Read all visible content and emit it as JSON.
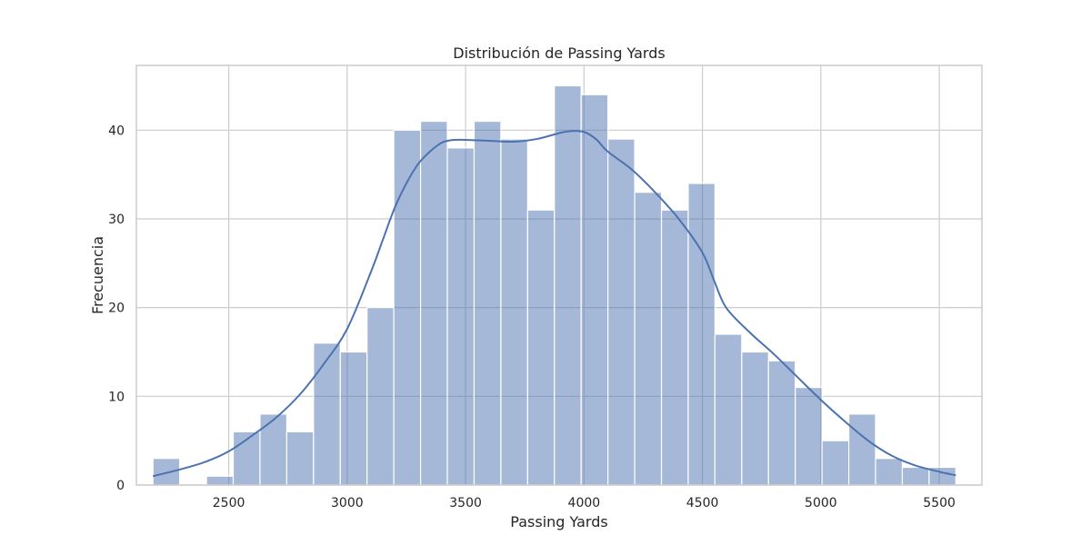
{
  "chart_data": {
    "type": "bar",
    "title": "Distribución de Passing Yards",
    "xlabel": "Passing Yards",
    "ylabel": "Frecuencia",
    "xlim": [
      2110,
      5680
    ],
    "ylim": [
      0,
      47.3
    ],
    "xticks": [
      2500,
      3000,
      3500,
      4000,
      4500,
      5000,
      5500
    ],
    "yticks": [
      0,
      10,
      20,
      30,
      40
    ],
    "grid": true,
    "bar_color": "#4c72b0",
    "bar_opacity": 0.5,
    "kde_color": "#4c72b0",
    "bin_start": 2180,
    "bin_width": 113,
    "bins": [
      {
        "x0": 2180,
        "x1": 2293,
        "count": 3
      },
      {
        "x0": 2293,
        "x1": 2406,
        "count": 0
      },
      {
        "x0": 2406,
        "x1": 2519,
        "count": 1
      },
      {
        "x0": 2519,
        "x1": 2632,
        "count": 6
      },
      {
        "x0": 2632,
        "x1": 2745,
        "count": 8
      },
      {
        "x0": 2745,
        "x1": 2858,
        "count": 6
      },
      {
        "x0": 2858,
        "x1": 2971,
        "count": 16
      },
      {
        "x0": 2971,
        "x1": 3084,
        "count": 15
      },
      {
        "x0": 3084,
        "x1": 3197,
        "count": 20
      },
      {
        "x0": 3197,
        "x1": 3310,
        "count": 40
      },
      {
        "x0": 3310,
        "x1": 3423,
        "count": 41
      },
      {
        "x0": 3423,
        "x1": 3536,
        "count": 38
      },
      {
        "x0": 3536,
        "x1": 3649,
        "count": 41
      },
      {
        "x0": 3649,
        "x1": 3762,
        "count": 39
      },
      {
        "x0": 3762,
        "x1": 3875,
        "count": 31
      },
      {
        "x0": 3875,
        "x1": 3988,
        "count": 45
      },
      {
        "x0": 3988,
        "x1": 4101,
        "count": 44
      },
      {
        "x0": 4101,
        "x1": 4214,
        "count": 39
      },
      {
        "x0": 4214,
        "x1": 4327,
        "count": 33
      },
      {
        "x0": 4327,
        "x1": 4440,
        "count": 31
      },
      {
        "x0": 4440,
        "x1": 4553,
        "count": 34
      },
      {
        "x0": 4553,
        "x1": 4666,
        "count": 17
      },
      {
        "x0": 4666,
        "x1": 4779,
        "count": 15
      },
      {
        "x0": 4779,
        "x1": 4892,
        "count": 14
      },
      {
        "x0": 4892,
        "x1": 5005,
        "count": 11
      },
      {
        "x0": 5005,
        "x1": 5118,
        "count": 5
      },
      {
        "x0": 5118,
        "x1": 5231,
        "count": 8
      },
      {
        "x0": 5231,
        "x1": 5344,
        "count": 3
      },
      {
        "x0": 5344,
        "x1": 5457,
        "count": 2
      },
      {
        "x0": 5457,
        "x1": 5570,
        "count": 2
      }
    ],
    "kde": {
      "x": [
        2180,
        2300,
        2400,
        2500,
        2600,
        2700,
        2800,
        2900,
        3000,
        3100,
        3150,
        3200,
        3250,
        3300,
        3350,
        3400,
        3450,
        3500,
        3600,
        3700,
        3800,
        3900,
        3950,
        4000,
        4050,
        4100,
        4200,
        4300,
        4400,
        4500,
        4550,
        4600,
        4700,
        4800,
        4900,
        5000,
        5100,
        5200,
        5300,
        5400,
        5500,
        5570
      ],
      "y": [
        1.0,
        1.8,
        2.6,
        3.8,
        5.6,
        7.6,
        10.2,
        13.6,
        17.6,
        24.0,
        27.6,
        31.2,
        34.0,
        36.2,
        37.6,
        38.6,
        38.9,
        38.9,
        38.8,
        38.7,
        39.0,
        39.7,
        39.9,
        39.8,
        39.0,
        37.6,
        35.6,
        33.0,
        30.0,
        26.2,
        23.0,
        20.0,
        17.2,
        14.8,
        12.2,
        9.6,
        7.2,
        5.0,
        3.3,
        2.2,
        1.5,
        1.1
      ]
    }
  }
}
